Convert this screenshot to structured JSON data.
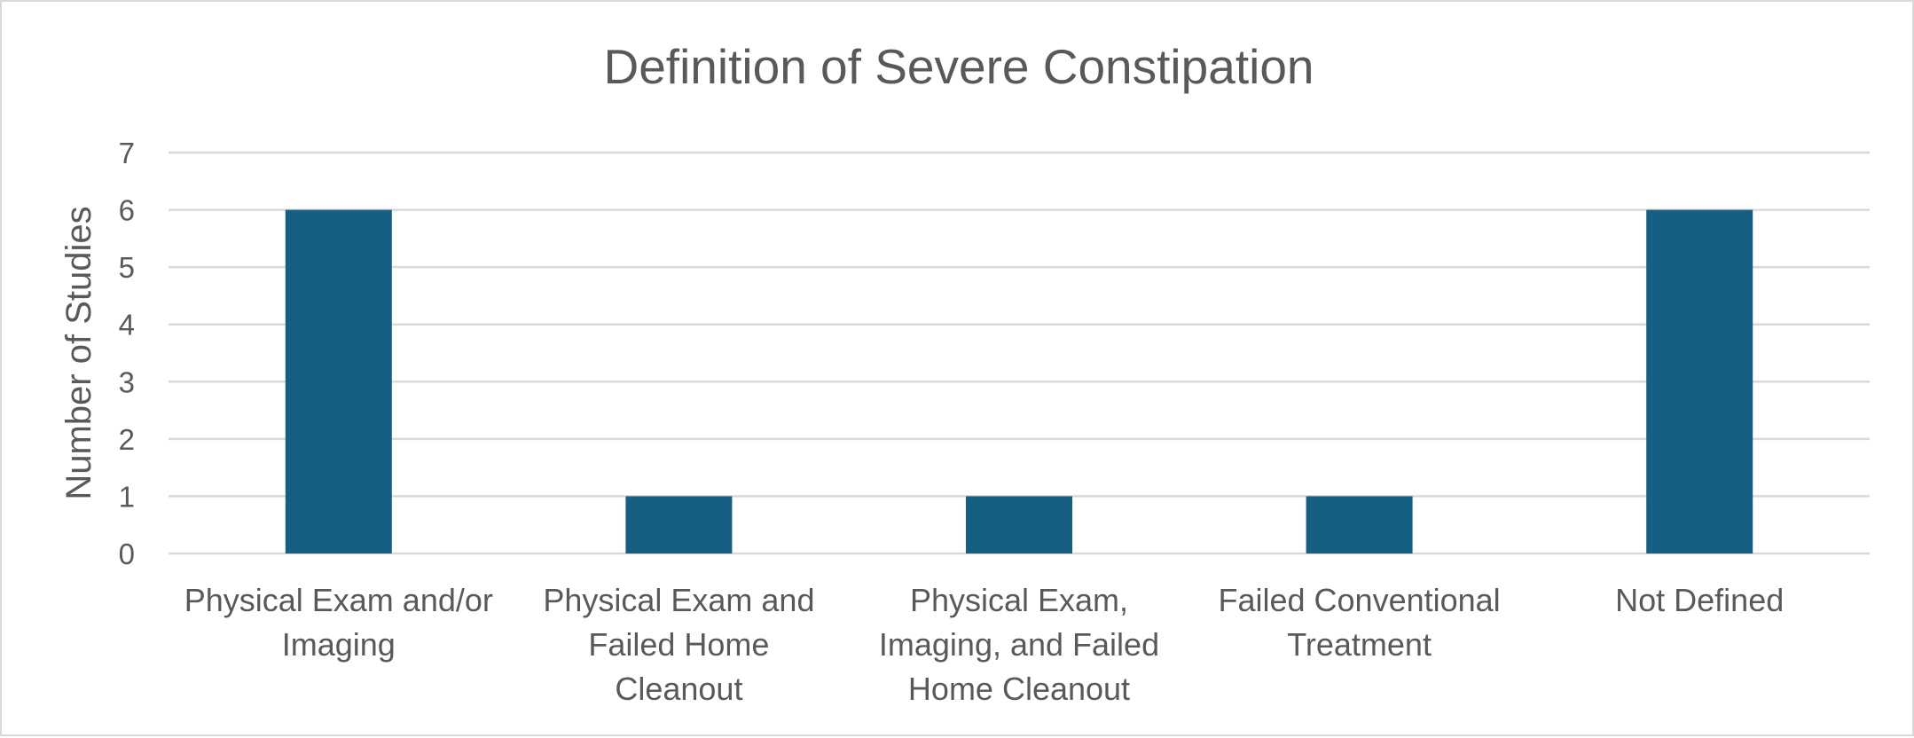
{
  "chart_data": {
    "type": "bar",
    "title": "Definition of Severe Constipation",
    "xlabel": "",
    "ylabel": "Number of Studies",
    "ylim": [
      0,
      7
    ],
    "yticks": [
      "0",
      "1",
      "2",
      "3",
      "4",
      "5",
      "6",
      "7"
    ],
    "grid": true,
    "legend": "none",
    "categories": [
      [
        "Physical Exam and/or",
        "Imaging"
      ],
      [
        "Physical Exam and",
        "Failed Home",
        "Cleanout"
      ],
      [
        "Physical Exam,",
        "Imaging, and Failed",
        "Home Cleanout"
      ],
      [
        "Failed Conventional",
        "Treatment"
      ],
      [
        "Not Defined"
      ]
    ],
    "values": [
      6,
      1,
      1,
      1,
      6
    ],
    "bar_color": "#155f82",
    "grid_color": "#d9d9d9",
    "text_color": "#595959"
  }
}
